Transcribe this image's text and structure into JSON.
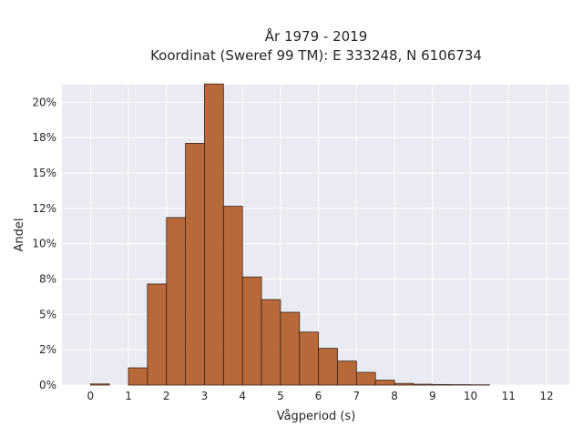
{
  "chart_data": {
    "type": "bar",
    "title_line1": "År 1979 - 2019",
    "title_line2": "Koordinat (Sweref 99 TM): E 333248, N 6106734",
    "xlabel": "Vågperiod (s)",
    "ylabel": "Andel",
    "xlim": [
      -0.75,
      12.6
    ],
    "ylim": [
      0,
      0.2125
    ],
    "x_ticks": [
      0,
      1,
      2,
      3,
      4,
      5,
      6,
      7,
      8,
      9,
      10,
      11,
      12
    ],
    "x_tick_labels": [
      "0",
      "1",
      "2",
      "3",
      "4",
      "5",
      "6",
      "7",
      "8",
      "9",
      "10",
      "11",
      "12"
    ],
    "y_ticks": [
      0,
      0.025,
      0.05,
      0.075,
      0.1,
      0.125,
      0.15,
      0.175,
      0.2
    ],
    "y_tick_labels": [
      "0%",
      "2%",
      "5%",
      "8%",
      "10%",
      "12%",
      "15%",
      "18%",
      "20%"
    ],
    "bin_width": 0.5,
    "bin_starts": [
      0,
      1,
      1.5,
      2,
      2.5,
      3,
      3.5,
      4,
      4.5,
      5,
      5.5,
      6,
      6.5,
      7,
      7.5,
      8,
      8.5,
      9,
      9.5,
      10
    ],
    "values": [
      0.0008,
      0.0122,
      0.0715,
      0.1185,
      0.171,
      0.213,
      0.1265,
      0.0765,
      0.0605,
      0.0515,
      0.0375,
      0.026,
      0.017,
      0.009,
      0.0035,
      0.0012,
      0.0006,
      0.0004,
      0.0003,
      0.0002
    ],
    "grid": true,
    "colors": {
      "bar_fill": "#b5622f",
      "bar_edge": "#3a2417",
      "plot_bg": "#eaeaf2",
      "grid": "#ffffff"
    }
  }
}
